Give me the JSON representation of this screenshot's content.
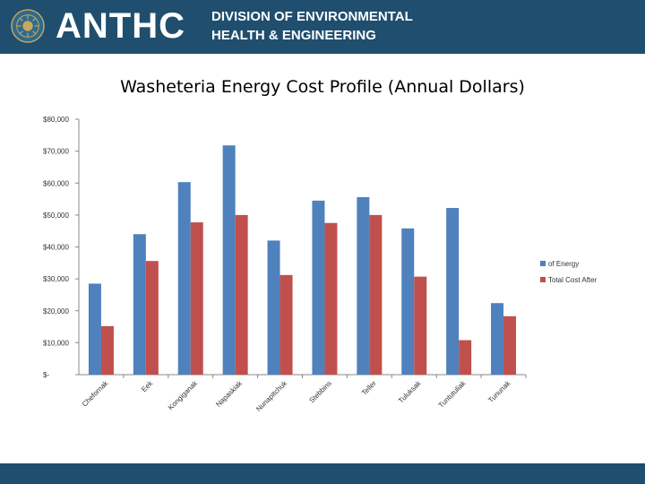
{
  "header": {
    "brand": "ANTHC",
    "division_line1": "DIVISION OF ENVIRONMENTAL",
    "division_line2": "HEALTH & ENGINEERING"
  },
  "colors": {
    "header_bg": "#1f4e6e",
    "series_before": "#4f81bd",
    "series_after": "#c0504d"
  },
  "chart_data": {
    "type": "bar",
    "title": "Washeteria Energy Cost Profile (Annual Dollars)",
    "categories": [
      "Chefornak",
      "Eek",
      "Kongiganak",
      "Napaskiak",
      "Nunapitchuk",
      "Stebbins",
      "Teller",
      "Tuluksak",
      "Tuntutuliak",
      "Tununak"
    ],
    "series": [
      {
        "name": "of Energy",
        "values": [
          28500,
          44000,
          60300,
          71800,
          42000,
          54500,
          55600,
          45800,
          52200,
          22400
        ]
      },
      {
        "name": "Total Cost After",
        "values": [
          15200,
          35600,
          47700,
          50000,
          31200,
          47500,
          50000,
          30700,
          10800,
          18300
        ]
      }
    ],
    "y_ticks": [
      "$-",
      "$10,000",
      "$20,000",
      "$30,000",
      "$40,000",
      "$50,000",
      "$60,000",
      "$70,000",
      "$80,000"
    ],
    "ylim": [
      0,
      80000
    ],
    "xlabel": "",
    "ylabel": "",
    "legend": "right",
    "grid": false
  }
}
